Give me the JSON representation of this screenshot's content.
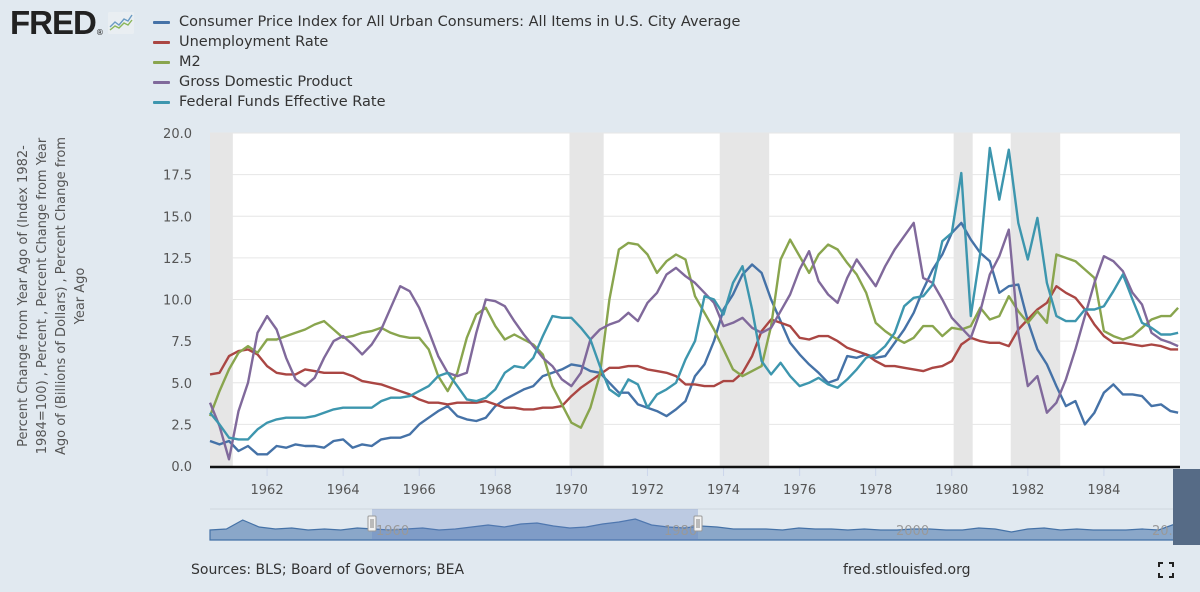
{
  "logo": {
    "text": "FRED",
    "icon": "line-graph-icon"
  },
  "legend": [
    {
      "label": "Consumer Price Index for All Urban Consumers: All Items in U.S. City Average",
      "color": "#4572a7"
    },
    {
      "label": "Unemployment Rate",
      "color": "#aa4643"
    },
    {
      "label": "M2",
      "color": "#89a54e"
    },
    {
      "label": "Gross Domestic Product",
      "color": "#80699b"
    },
    {
      "label": "Federal Funds Effective Rate",
      "color": "#3d96ae"
    }
  ],
  "footer": {
    "sources": "Sources: BLS; Board of Governors; BEA",
    "site": "fred.stlouisfed.org",
    "fullscreen_icon": "fullscreen-icon"
  },
  "navigator": {
    "labels": [
      "1960",
      "1980",
      "2000",
      "20..."
    ],
    "selected_range": [
      "1960-07",
      "1985-12"
    ]
  },
  "chart_data": {
    "type": "line",
    "title": "",
    "xlabel": "",
    "ylabel": "Percent Change from Year Ago of (Index 1982-1984=100) , Percent , Percent Change from Year Ago of (Billions of Dollars) , Percent Change from Year Ago",
    "xlim": [
      1960.5,
      1986.0
    ],
    "ylim": [
      0,
      20
    ],
    "yticks": [
      "0.0",
      "2.5",
      "5.0",
      "7.5",
      "10.0",
      "12.5",
      "15.0",
      "17.5",
      "20.0"
    ],
    "xticks": [
      "1962",
      "1964",
      "1966",
      "1968",
      "1970",
      "1972",
      "1974",
      "1976",
      "1978",
      "1980",
      "1982",
      "1984"
    ],
    "grid": true,
    "legend_position": "top-left",
    "recessions": [
      [
        1960.5,
        1961.1
      ],
      [
        1969.95,
        1970.85
      ],
      [
        1973.9,
        1975.2
      ],
      [
        1980.05,
        1980.55
      ],
      [
        1981.55,
        1982.85
      ]
    ],
    "x": [
      1960.5,
      1960.75,
      1961.0,
      1961.25,
      1961.5,
      1961.75,
      1962.0,
      1962.25,
      1962.5,
      1962.75,
      1963.0,
      1963.25,
      1963.5,
      1963.75,
      1964.0,
      1964.25,
      1964.5,
      1964.75,
      1965.0,
      1965.25,
      1965.5,
      1965.75,
      1966.0,
      1966.25,
      1966.5,
      1966.75,
      1967.0,
      1967.25,
      1967.5,
      1967.75,
      1968.0,
      1968.25,
      1968.5,
      1968.75,
      1969.0,
      1969.25,
      1969.5,
      1969.75,
      1970.0,
      1970.25,
      1970.5,
      1970.75,
      1971.0,
      1971.25,
      1971.5,
      1971.75,
      1972.0,
      1972.25,
      1972.5,
      1972.75,
      1973.0,
      1973.25,
      1973.5,
      1973.75,
      1974.0,
      1974.25,
      1974.5,
      1974.75,
      1975.0,
      1975.25,
      1975.5,
      1975.75,
      1976.0,
      1976.25,
      1976.5,
      1976.75,
      1977.0,
      1977.25,
      1977.5,
      1977.75,
      1978.0,
      1978.25,
      1978.5,
      1978.75,
      1979.0,
      1979.25,
      1979.5,
      1979.75,
      1980.0,
      1980.25,
      1980.5,
      1980.75,
      1981.0,
      1981.25,
      1981.5,
      1981.75,
      1982.0,
      1982.25,
      1982.5,
      1982.75,
      1983.0,
      1983.25,
      1983.5,
      1983.75,
      1984.0,
      1984.25,
      1984.5,
      1984.75,
      1985.0,
      1985.25,
      1985.5,
      1985.75,
      1985.95
    ],
    "series": [
      {
        "name": "Consumer Price Index for All Urban Consumers: All Items in U.S. City Average",
        "color": "#4572a7",
        "values": [
          1.5,
          1.3,
          1.5,
          0.9,
          1.2,
          0.7,
          0.7,
          1.2,
          1.1,
          1.3,
          1.2,
          1.2,
          1.1,
          1.5,
          1.6,
          1.1,
          1.3,
          1.2,
          1.6,
          1.7,
          1.7,
          1.9,
          2.5,
          2.9,
          3.3,
          3.6,
          3.0,
          2.8,
          2.7,
          2.9,
          3.6,
          4.0,
          4.3,
          4.6,
          4.8,
          5.4,
          5.6,
          5.8,
          6.1,
          6.0,
          5.7,
          5.6,
          5.0,
          4.4,
          4.4,
          3.7,
          3.5,
          3.3,
          3.0,
          3.4,
          3.9,
          5.4,
          6.1,
          7.5,
          9.4,
          10.3,
          11.5,
          12.1,
          11.6,
          10.0,
          8.7,
          7.4,
          6.7,
          6.1,
          5.6,
          5.0,
          5.2,
          6.6,
          6.5,
          6.7,
          6.5,
          6.6,
          7.4,
          8.2,
          9.2,
          10.6,
          11.8,
          12.7,
          14.0,
          14.6,
          13.6,
          12.8,
          12.3,
          10.4,
          10.8,
          10.9,
          8.7,
          7.0,
          6.1,
          4.8,
          3.6,
          3.9,
          2.5,
          3.2,
          4.4,
          4.9,
          4.3,
          4.3,
          4.2,
          3.6,
          3.7,
          3.3,
          3.2
        ]
      },
      {
        "name": "Unemployment Rate",
        "color": "#aa4643",
        "values": [
          5.5,
          5.6,
          6.6,
          6.9,
          7.0,
          6.7,
          6.0,
          5.6,
          5.5,
          5.5,
          5.8,
          5.7,
          5.6,
          5.6,
          5.6,
          5.4,
          5.1,
          5.0,
          4.9,
          4.7,
          4.5,
          4.3,
          4.0,
          3.8,
          3.8,
          3.7,
          3.8,
          3.8,
          3.8,
          3.9,
          3.7,
          3.5,
          3.5,
          3.4,
          3.4,
          3.5,
          3.5,
          3.6,
          4.2,
          4.7,
          5.1,
          5.5,
          5.9,
          5.9,
          6.0,
          6.0,
          5.8,
          5.7,
          5.6,
          5.4,
          4.9,
          4.9,
          4.8,
          4.8,
          5.1,
          5.1,
          5.6,
          6.6,
          8.1,
          8.8,
          8.6,
          8.4,
          7.7,
          7.6,
          7.8,
          7.8,
          7.5,
          7.1,
          6.9,
          6.7,
          6.3,
          6.0,
          6.0,
          5.9,
          5.8,
          5.7,
          5.9,
          6.0,
          6.3,
          7.3,
          7.7,
          7.5,
          7.4,
          7.4,
          7.2,
          8.2,
          8.8,
          9.4,
          9.8,
          10.8,
          10.4,
          10.1,
          9.4,
          8.5,
          7.8,
          7.4,
          7.4,
          7.3,
          7.2,
          7.3,
          7.2,
          7.0,
          7.0
        ]
      },
      {
        "name": "M2",
        "color": "#89a54e",
        "values": [
          3.0,
          4.5,
          5.8,
          6.8,
          7.2,
          6.8,
          7.6,
          7.6,
          7.8,
          8.0,
          8.2,
          8.5,
          8.7,
          8.2,
          7.7,
          7.8,
          8.0,
          8.1,
          8.3,
          8.0,
          7.8,
          7.7,
          7.7,
          7.0,
          5.4,
          4.5,
          5.6,
          7.7,
          9.1,
          9.5,
          8.4,
          7.6,
          7.9,
          7.6,
          7.3,
          6.7,
          4.8,
          3.7,
          2.6,
          2.3,
          3.5,
          5.5,
          10.0,
          13.0,
          13.4,
          13.3,
          12.7,
          11.6,
          12.3,
          12.7,
          12.4,
          10.2,
          9.2,
          8.2,
          7.0,
          5.8,
          5.4,
          5.7,
          6.0,
          8.4,
          12.4,
          13.6,
          12.6,
          11.6,
          12.7,
          13.3,
          13.0,
          12.2,
          11.5,
          10.4,
          8.6,
          8.1,
          7.7,
          7.4,
          7.7,
          8.4,
          8.4,
          7.8,
          8.3,
          8.2,
          8.4,
          9.5,
          8.8,
          9.0,
          10.2,
          9.3,
          8.6,
          9.3,
          8.6,
          12.7,
          12.5,
          12.3,
          11.8,
          11.3,
          8.1,
          7.8,
          7.6,
          7.8,
          8.3,
          8.8,
          9.0,
          9.0,
          9.5
        ]
      },
      {
        "name": "Gross Domestic Product",
        "color": "#80699b",
        "values": [
          3.8,
          2.4,
          0.4,
          3.3,
          5.0,
          8.0,
          9.0,
          8.2,
          6.5,
          5.2,
          4.8,
          5.3,
          6.5,
          7.5,
          7.8,
          7.3,
          6.7,
          7.3,
          8.2,
          9.5,
          10.8,
          10.5,
          9.5,
          8.1,
          6.6,
          5.6,
          5.4,
          5.6,
          8.0,
          10.0,
          9.9,
          9.6,
          8.7,
          7.9,
          7.2,
          6.5,
          6.0,
          5.2,
          4.8,
          5.6,
          7.6,
          8.2,
          8.5,
          8.7,
          9.2,
          8.7,
          9.8,
          10.4,
          11.5,
          11.9,
          11.4,
          11.0,
          10.4,
          9.8,
          8.4,
          8.6,
          8.9,
          8.3,
          8.0,
          8.3,
          9.3,
          10.3,
          11.8,
          12.9,
          11.1,
          10.3,
          9.8,
          11.3,
          12.4,
          11.6,
          10.8,
          12.0,
          13.0,
          13.8,
          14.6,
          11.3,
          11.0,
          10.0,
          8.9,
          8.3,
          7.7,
          9.3,
          11.5,
          12.6,
          14.2,
          8.0,
          4.8,
          5.4,
          3.2,
          3.8,
          5.2,
          7.0,
          9.0,
          11.0,
          12.6,
          12.3,
          11.7,
          10.4,
          9.7,
          8.0,
          7.6,
          7.4,
          7.2
        ]
      },
      {
        "name": "Federal Funds Effective Rate",
        "color": "#3d96ae",
        "values": [
          3.2,
          2.5,
          1.7,
          1.6,
          1.6,
          2.2,
          2.6,
          2.8,
          2.9,
          2.9,
          2.9,
          3.0,
          3.2,
          3.4,
          3.5,
          3.5,
          3.5,
          3.5,
          3.9,
          4.1,
          4.1,
          4.2,
          4.5,
          4.8,
          5.4,
          5.6,
          4.8,
          4.0,
          3.9,
          4.1,
          4.6,
          5.6,
          6.0,
          5.9,
          6.5,
          7.8,
          9.0,
          8.9,
          8.9,
          8.3,
          7.6,
          6.0,
          4.6,
          4.2,
          5.2,
          4.9,
          3.5,
          4.3,
          4.6,
          5.0,
          6.4,
          7.5,
          10.2,
          10.0,
          9.1,
          11.0,
          12.0,
          9.4,
          6.3,
          5.5,
          6.2,
          5.4,
          4.8,
          5.0,
          5.3,
          4.9,
          4.7,
          5.2,
          5.8,
          6.5,
          6.7,
          7.2,
          8.0,
          9.6,
          10.1,
          10.2,
          10.9,
          13.5,
          14.0,
          17.6,
          9.0,
          12.8,
          19.1,
          16.0,
          19.0,
          14.6,
          12.4,
          14.9,
          11.0,
          9.0,
          8.7,
          8.7,
          9.4,
          9.4,
          9.6,
          10.5,
          11.5,
          10.0,
          8.6,
          8.3,
          7.9,
          7.9,
          8.0
        ]
      }
    ]
  }
}
